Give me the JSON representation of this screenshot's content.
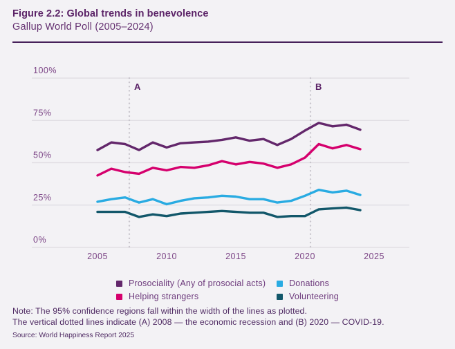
{
  "header": {
    "title": "Figure 2.2: Global trends in benevolence",
    "subtitle": "Gallup World Poll (2005–2024)"
  },
  "chart_data": {
    "type": "line",
    "title": "Figure 2.2: Global trends in benevolence",
    "subtitle": "Gallup World Poll (2005–2024)",
    "x": [
      2005,
      2006,
      2007,
      2008,
      2009,
      2010,
      2011,
      2012,
      2013,
      2014,
      2015,
      2016,
      2017,
      2018,
      2019,
      2020,
      2021,
      2022,
      2023,
      2024
    ],
    "series": [
      {
        "name": "Prosociality (Any of prosocial acts)",
        "color": "#63276b",
        "values": [
          57.5,
          62,
          61,
          57.5,
          62,
          59,
          61.5,
          62,
          62.5,
          63.5,
          65,
          63,
          64,
          60.5,
          64,
          69,
          73.5,
          71.5,
          72.5,
          69.5
        ]
      },
      {
        "name": "Helping strangers",
        "color": "#d5006d",
        "values": [
          42.5,
          46.5,
          44.5,
          43.5,
          47,
          45.5,
          47.5,
          47,
          48.5,
          51,
          49,
          50.5,
          49.5,
          47,
          49,
          53,
          61,
          58.5,
          60.5,
          58
        ]
      },
      {
        "name": "Donations",
        "color": "#29abe2",
        "values": [
          27,
          28.5,
          29.5,
          26.5,
          28.5,
          25.5,
          27.5,
          29,
          29.5,
          30.5,
          30,
          28.5,
          28.5,
          26.5,
          27.5,
          30.5,
          34,
          32.5,
          33.5,
          31
        ]
      },
      {
        "name": "Volunteering",
        "color": "#12576a",
        "values": [
          21,
          21,
          21,
          18,
          19.5,
          18.5,
          20,
          20.5,
          21,
          21.5,
          21,
          20.5,
          20.5,
          18,
          18.5,
          18.5,
          22.5,
          23,
          23.5,
          22
        ]
      }
    ],
    "ylim": [
      0,
      100
    ],
    "yticks": [
      100,
      75,
      50,
      25,
      0
    ],
    "ytick_labels": [
      "100%",
      "75%",
      "50%",
      "25%",
      "0%"
    ],
    "xticks": [
      2005,
      2010,
      2015,
      2020,
      2025
    ],
    "xtick_labels": [
      "2005",
      "2010",
      "2015",
      "2020",
      "2025"
    ],
    "grid": true,
    "legend_position": "bottom",
    "annotations": [
      {
        "label": "A",
        "year": 2008,
        "plot_year": 2007.3
      },
      {
        "label": "B",
        "year": 2020,
        "plot_year": 2020.4
      }
    ]
  },
  "legend": {
    "items": [
      "Prosociality (Any of prosocial acts)",
      "Donations",
      "Helping strangers",
      "Volunteering"
    ]
  },
  "notes": {
    "line1": "Note: The 95% confidence regions fall within the width of the lines as plotted.",
    "line2": "The vertical dotted lines indicate (A) 2008 — the economic recession and (B) 2020 — COVID-19.",
    "source": "Source: World Happiness Report 2025"
  },
  "colors": {
    "background": "#f3f2f5",
    "title_text": "#5b2367",
    "rule": "#46215a",
    "gridline": "#dedbe1",
    "dotted_line": "#c9c6cd",
    "tick_label": "#7c4586",
    "annotation_label": "#5b2367",
    "note_text": "#4f2a63"
  }
}
